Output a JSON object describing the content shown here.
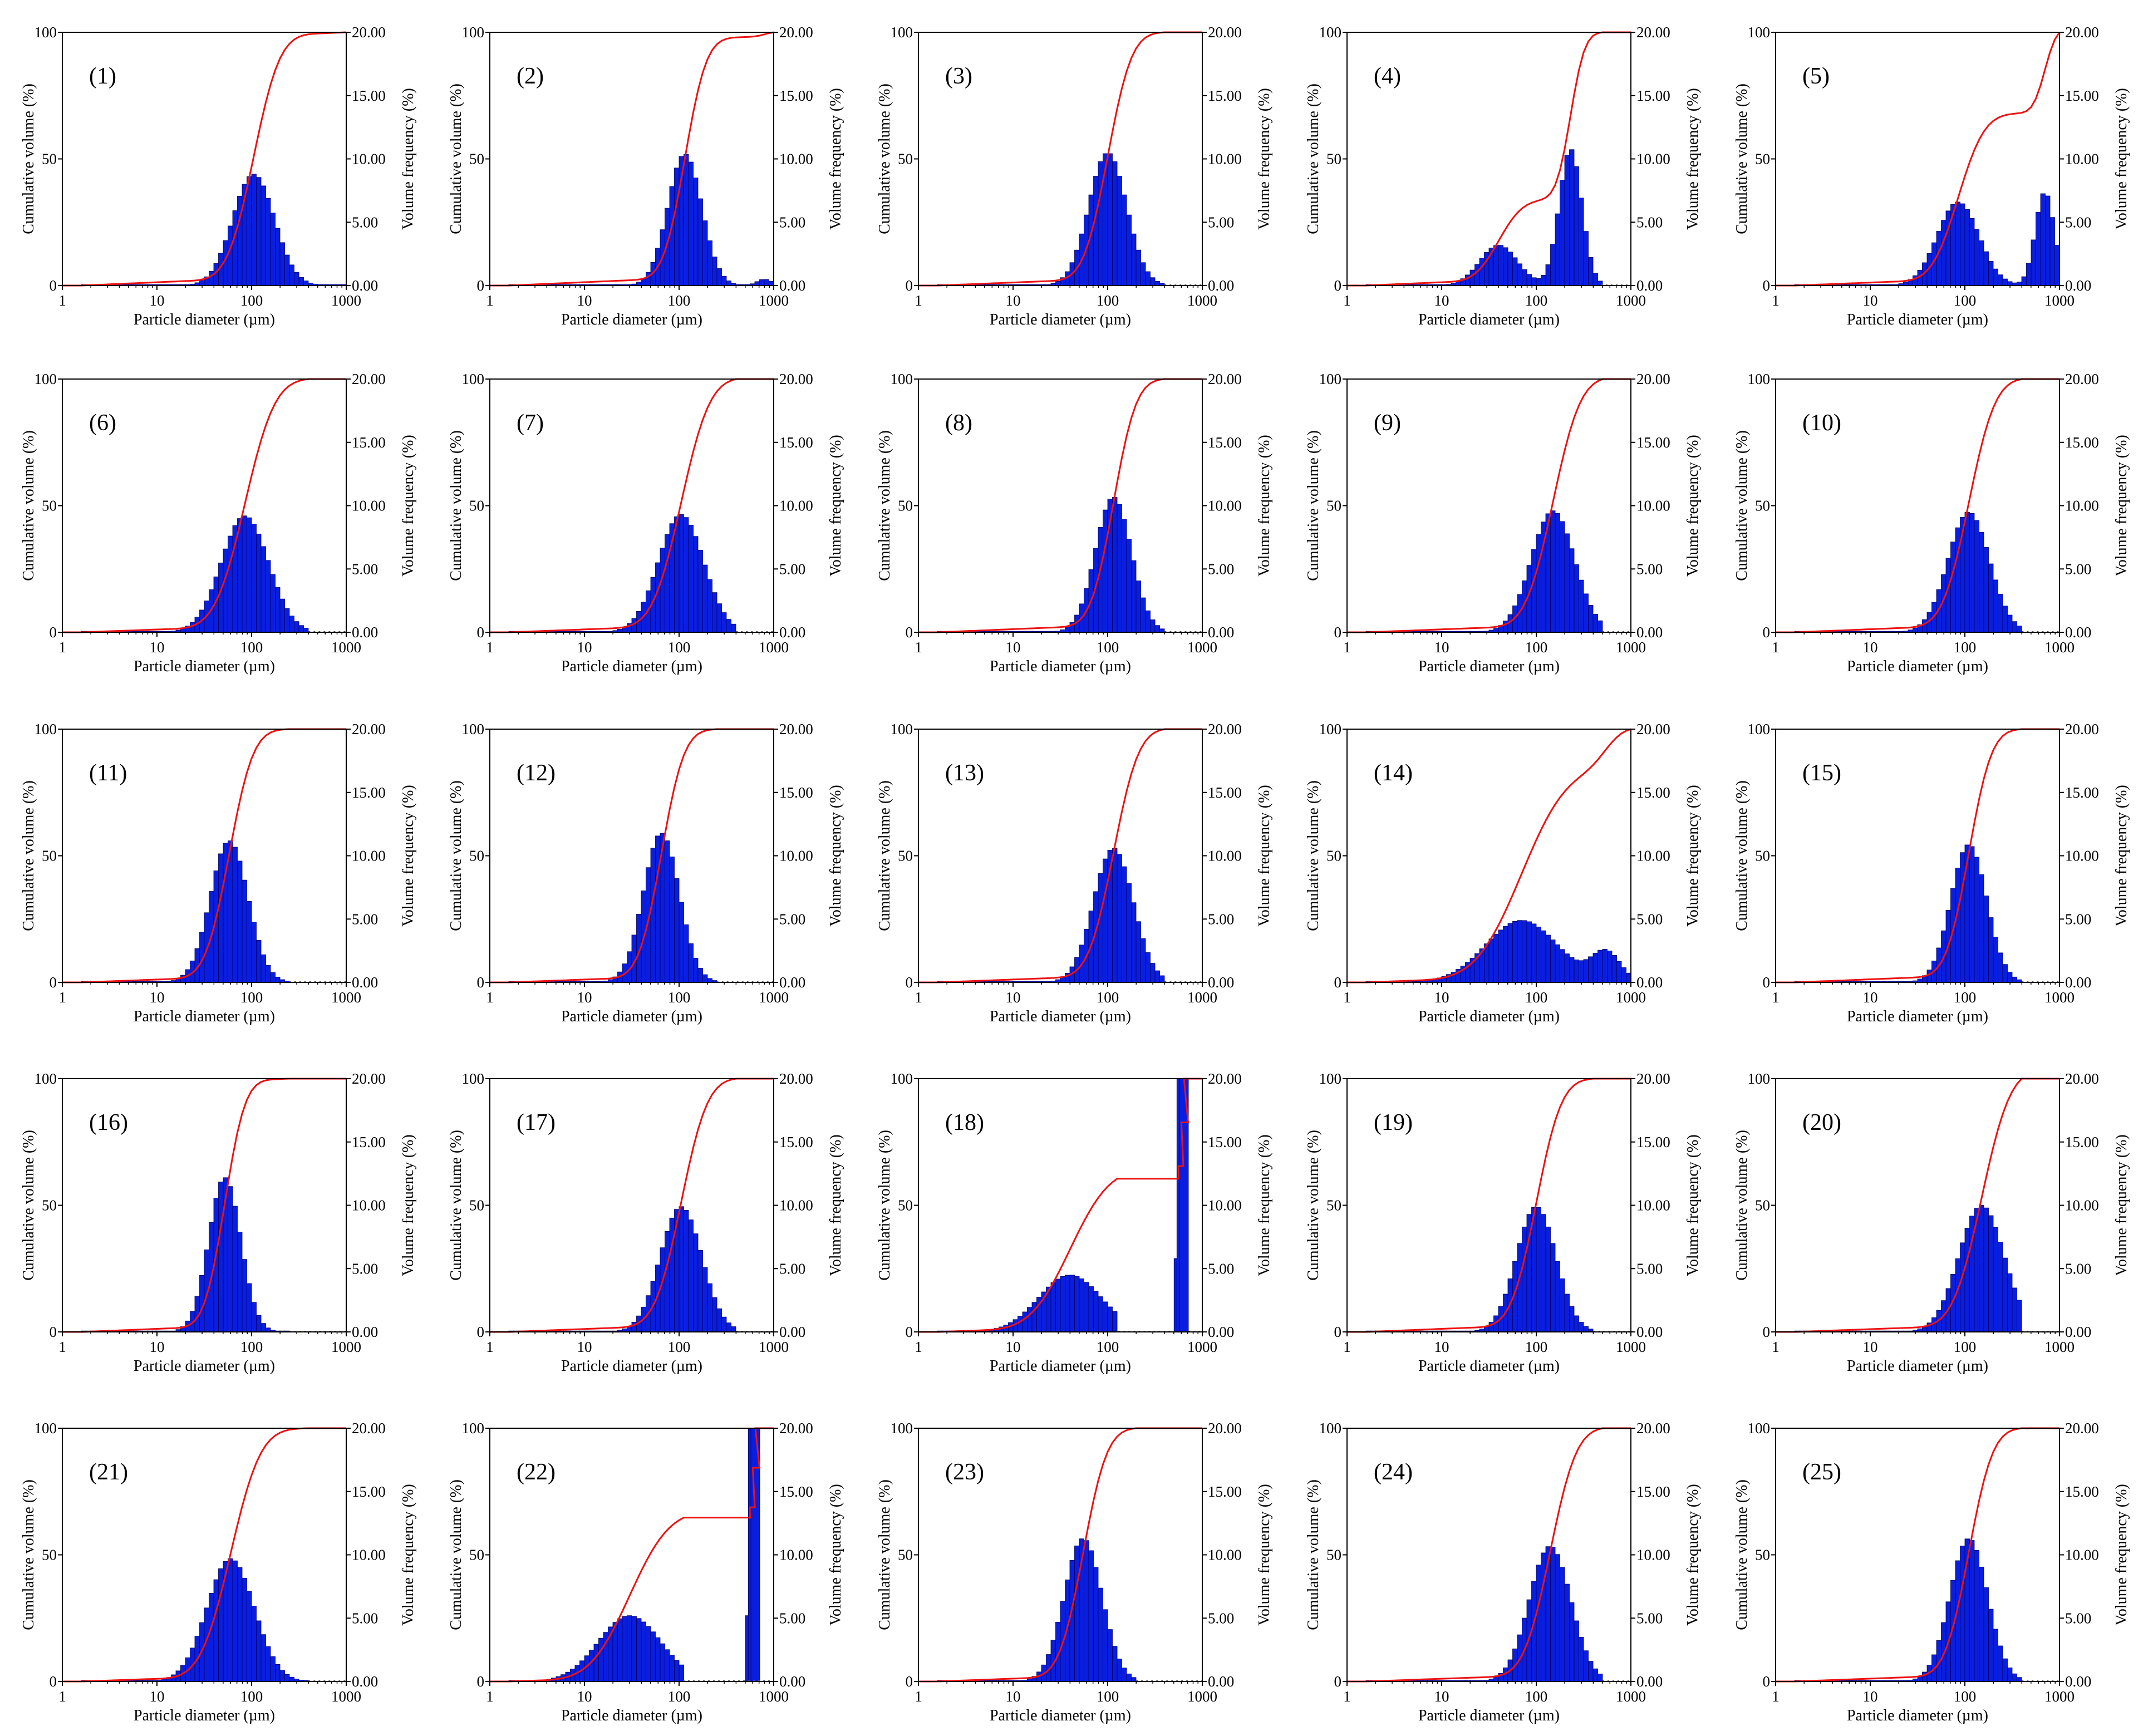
{
  "figure": {
    "rows": 5,
    "cols": 5
  },
  "shared_axes": {
    "x_label": "Particle diameter (µm)",
    "y_left_label": "Cumulative volume (%)",
    "y_right_label": "Volume frequency (%)",
    "x_ticks": [
      "1",
      "10",
      "100",
      "1000"
    ],
    "y_left_ticks": [
      "0",
      "50",
      "100"
    ],
    "y_right_ticks": [
      "0.00",
      "5.00",
      "10.00",
      "15.00",
      "20.00"
    ]
  },
  "colors": {
    "bar_fill": "#0a1ee0",
    "bar_stroke": "#000060",
    "cumulative_line": "#ee1111",
    "frame": "#000000"
  },
  "chart_data": [
    {
      "type": "bar+line",
      "label": "(1)",
      "xscale": "log",
      "xlim": [
        1,
        1000
      ],
      "ylim_left": [
        0,
        100
      ],
      "ylim_right": [
        0,
        20
      ],
      "series": [
        {
          "name": "Volume frequency (%)",
          "kind": "bar",
          "components": [
            {
              "mean": 105,
              "sigma": 0.22,
              "peak": 8.8
            }
          ],
          "x_max": 1000
        },
        {
          "name": "Cumulative volume (%)",
          "kind": "line"
        }
      ]
    },
    {
      "type": "bar+line",
      "label": "(2)",
      "xscale": "log",
      "xlim": [
        1,
        1000
      ],
      "ylim_left": [
        0,
        100
      ],
      "ylim_right": [
        0,
        20
      ],
      "series": [
        {
          "name": "Volume frequency (%)",
          "kind": "bar",
          "components": [
            {
              "mean": 115,
              "sigma": 0.18,
              "peak": 10.4
            },
            {
              "mean": 800,
              "sigma": 0.08,
              "peak": 0.5
            }
          ],
          "x_max": 1000
        },
        {
          "name": "Cumulative volume (%)",
          "kind": "line"
        }
      ]
    },
    {
      "type": "bar+line",
      "label": "(3)",
      "xscale": "log",
      "xlim": [
        1,
        1000
      ],
      "ylim_left": [
        0,
        100
      ],
      "ylim_right": [
        0,
        20
      ],
      "series": [
        {
          "name": "Volume frequency (%)",
          "kind": "bar",
          "components": [
            {
              "mean": 100,
              "sigma": 0.2,
              "peak": 10.5
            }
          ],
          "x_max": 400
        },
        {
          "name": "Cumulative volume (%)",
          "kind": "line"
        }
      ]
    },
    {
      "type": "bar+line",
      "label": "(4)",
      "xscale": "log",
      "xlim": [
        1,
        1000
      ],
      "ylim_left": [
        0,
        100
      ],
      "ylim_right": [
        0,
        20
      ],
      "series": [
        {
          "name": "Volume frequency (%)",
          "kind": "bar",
          "components": [
            {
              "mean": 40,
              "sigma": 0.2,
              "peak": 3.2
            },
            {
              "mean": 230,
              "sigma": 0.12,
              "peak": 10.8
            }
          ],
          "x_max": 480
        },
        {
          "name": "Cumulative volume (%)",
          "kind": "line"
        }
      ]
    },
    {
      "type": "bar+line",
      "label": "(5)",
      "xscale": "log",
      "xlim": [
        1,
        1000
      ],
      "ylim_left": [
        0,
        100
      ],
      "ylim_right": [
        0,
        20
      ],
      "series": [
        {
          "name": "Volume frequency (%)",
          "kind": "bar",
          "components": [
            {
              "mean": 85,
              "sigma": 0.22,
              "peak": 6.6
            },
            {
              "mean": 700,
              "sigma": 0.1,
              "peak": 7.4
            }
          ],
          "x_max": 1000
        },
        {
          "name": "Cumulative volume (%)",
          "kind": "line"
        }
      ]
    },
    {
      "type": "bar+line",
      "label": "(6)",
      "xscale": "log",
      "xlim": [
        1,
        1000
      ],
      "ylim_left": [
        0,
        100
      ],
      "ylim_right": [
        0,
        20
      ],
      "series": [
        {
          "name": "Volume frequency (%)",
          "kind": "bar",
          "components": [
            {
              "mean": 85,
              "sigma": 0.25,
              "peak": 9.2
            }
          ],
          "x_max": 400
        },
        {
          "name": "Cumulative volume (%)",
          "kind": "line"
        }
      ]
    },
    {
      "type": "bar+line",
      "label": "(7)",
      "xscale": "log",
      "xlim": [
        1,
        1000
      ],
      "ylim_left": [
        0,
        100
      ],
      "ylim_right": [
        0,
        20
      ],
      "series": [
        {
          "name": "Volume frequency (%)",
          "kind": "bar",
          "components": [
            {
              "mean": 105,
              "sigma": 0.24,
              "peak": 9.3
            }
          ],
          "x_max": 400
        },
        {
          "name": "Cumulative volume (%)",
          "kind": "line"
        }
      ]
    },
    {
      "type": "bar+line",
      "label": "(8)",
      "xscale": "log",
      "xlim": [
        1,
        1000
      ],
      "ylim_left": [
        0,
        100
      ],
      "ylim_right": [
        0,
        20
      ],
      "series": [
        {
          "name": "Volume frequency (%)",
          "kind": "bar",
          "components": [
            {
              "mean": 115,
              "sigma": 0.19,
              "peak": 10.7
            }
          ],
          "x_max": 400
        },
        {
          "name": "Cumulative volume (%)",
          "kind": "line"
        }
      ]
    },
    {
      "type": "bar+line",
      "label": "(9)",
      "xscale": "log",
      "xlim": [
        1,
        1000
      ],
      "ylim_left": [
        0,
        100
      ],
      "ylim_right": [
        0,
        20
      ],
      "series": [
        {
          "name": "Volume frequency (%)",
          "kind": "bar",
          "components": [
            {
              "mean": 150,
              "sigma": 0.23,
              "peak": 9.6
            }
          ],
          "x_max": 500
        },
        {
          "name": "Cumulative volume (%)",
          "kind": "line"
        }
      ]
    },
    {
      "type": "bar+line",
      "label": "(10)",
      "xscale": "log",
      "xlim": [
        1,
        1000
      ],
      "ylim_left": [
        0,
        100
      ],
      "ylim_right": [
        0,
        20
      ],
      "series": [
        {
          "name": "Volume frequency (%)",
          "kind": "bar",
          "components": [
            {
              "mean": 110,
              "sigma": 0.22,
              "peak": 9.5
            }
          ],
          "x_max": 400
        },
        {
          "name": "Cumulative volume (%)",
          "kind": "line"
        }
      ]
    },
    {
      "type": "bar+line",
      "label": "(11)",
      "xscale": "log",
      "xlim": [
        1,
        1000
      ],
      "ylim_left": [
        0,
        100
      ],
      "ylim_right": [
        0,
        20
      ],
      "series": [
        {
          "name": "Volume frequency (%)",
          "kind": "bar",
          "components": [
            {
              "mean": 58,
              "sigma": 0.2,
              "peak": 11.2
            }
          ],
          "x_max": 250
        },
        {
          "name": "Cumulative volume (%)",
          "kind": "line"
        }
      ]
    },
    {
      "type": "bar+line",
      "label": "(12)",
      "xscale": "log",
      "xlim": [
        1,
        1000
      ],
      "ylim_left": [
        0,
        100
      ],
      "ylim_right": [
        0,
        20
      ],
      "series": [
        {
          "name": "Volume frequency (%)",
          "kind": "bar",
          "components": [
            {
              "mean": 65,
              "sigma": 0.19,
              "peak": 11.8
            }
          ],
          "x_max": 250
        },
        {
          "name": "Cumulative volume (%)",
          "kind": "line"
        }
      ]
    },
    {
      "type": "bar+line",
      "label": "(13)",
      "xscale": "log",
      "xlim": [
        1,
        1000
      ],
      "ylim_left": [
        0,
        100
      ],
      "ylim_right": [
        0,
        20
      ],
      "series": [
        {
          "name": "Volume frequency (%)",
          "kind": "bar",
          "components": [
            {
              "mean": 115,
              "sigma": 0.21,
              "peak": 10.6
            }
          ],
          "x_max": 400
        },
        {
          "name": "Cumulative volume (%)",
          "kind": "line"
        }
      ]
    },
    {
      "type": "bar+line",
      "label": "(14)",
      "xscale": "log",
      "xlim": [
        1,
        1000
      ],
      "ylim_left": [
        0,
        100
      ],
      "ylim_right": [
        0,
        20
      ],
      "series": [
        {
          "name": "Volume frequency (%)",
          "kind": "bar",
          "components": [
            {
              "mean": 70,
              "sigma": 0.38,
              "peak": 4.9
            },
            {
              "mean": 550,
              "sigma": 0.15,
              "peak": 2.3
            }
          ],
          "x_max": 1000
        },
        {
          "name": "Cumulative volume (%)",
          "kind": "line"
        }
      ]
    },
    {
      "type": "bar+line",
      "label": "(15)",
      "xscale": "log",
      "xlim": [
        1,
        1000
      ],
      "ylim_left": [
        0,
        100
      ],
      "ylim_right": [
        0,
        20
      ],
      "series": [
        {
          "name": "Volume frequency (%)",
          "kind": "bar",
          "components": [
            {
              "mean": 110,
              "sigma": 0.19,
              "peak": 10.9
            }
          ],
          "x_max": 400
        },
        {
          "name": "Cumulative volume (%)",
          "kind": "line"
        }
      ]
    },
    {
      "type": "bar+line",
      "label": "(16)",
      "xscale": "log",
      "xlim": [
        1,
        1000
      ],
      "ylim_left": [
        0,
        100
      ],
      "ylim_right": [
        0,
        20
      ],
      "series": [
        {
          "name": "Volume frequency (%)",
          "kind": "bar",
          "components": [
            {
              "mean": 52,
              "sigma": 0.17,
              "peak": 12.2
            }
          ],
          "x_max": 250
        },
        {
          "name": "Cumulative volume (%)",
          "kind": "line"
        }
      ]
    },
    {
      "type": "bar+line",
      "label": "(17)",
      "xscale": "log",
      "xlim": [
        1,
        1000
      ],
      "ylim_left": [
        0,
        100
      ],
      "ylim_right": [
        0,
        20
      ],
      "series": [
        {
          "name": "Volume frequency (%)",
          "kind": "bar",
          "components": [
            {
              "mean": 105,
              "sigma": 0.22,
              "peak": 9.9
            }
          ],
          "x_max": 400
        },
        {
          "name": "Cumulative volume (%)",
          "kind": "line"
        }
      ]
    },
    {
      "type": "bar+line",
      "label": "(18)",
      "xscale": "log",
      "xlim": [
        1,
        1000
      ],
      "ylim_left": [
        0,
        100
      ],
      "ylim_right": [
        0,
        20
      ],
      "series": [
        {
          "name": "Volume frequency (%)",
          "kind": "bar",
          "components": [
            {
              "mean": 40,
              "sigma": 0.33,
              "peak": 4.5
            }
          ],
          "x_max": 130,
          "spike": {
            "x": [
              560,
              600,
              640
            ],
            "values": [
              5.8,
              20,
              20
            ]
          }
        },
        {
          "name": "Cumulative volume (%)",
          "kind": "line"
        }
      ]
    },
    {
      "type": "bar+line",
      "label": "(19)",
      "xscale": "log",
      "xlim": [
        1,
        1000
      ],
      "ylim_left": [
        0,
        100
      ],
      "ylim_right": [
        0,
        20
      ],
      "series": [
        {
          "name": "Volume frequency (%)",
          "kind": "bar",
          "components": [
            {
              "mean": 100,
              "sigma": 0.21,
              "peak": 9.9
            }
          ],
          "x_max": 400
        },
        {
          "name": "Cumulative volume (%)",
          "kind": "line"
        }
      ]
    },
    {
      "type": "bar+line",
      "label": "(20)",
      "xscale": "log",
      "xlim": [
        1,
        1000
      ],
      "ylim_left": [
        0,
        100
      ],
      "ylim_right": [
        0,
        20
      ],
      "series": [
        {
          "name": "Volume frequency (%)",
          "kind": "bar",
          "components": [
            {
              "mean": 150,
              "sigma": 0.24,
              "peak": 10
            }
          ],
          "x_max": 400
        },
        {
          "name": "Cumulative volume (%)",
          "kind": "line"
        }
      ]
    },
    {
      "type": "bar+line",
      "label": "(21)",
      "xscale": "log",
      "xlim": [
        1,
        1000
      ],
      "ylim_left": [
        0,
        100
      ],
      "ylim_right": [
        0,
        20
      ],
      "series": [
        {
          "name": "Volume frequency (%)",
          "kind": "bar",
          "components": [
            {
              "mean": 60,
              "sigma": 0.25,
              "peak": 9.7
            }
          ],
          "x_max": 400
        },
        {
          "name": "Cumulative volume (%)",
          "kind": "line"
        }
      ]
    },
    {
      "type": "bar+line",
      "label": "(22)",
      "xscale": "log",
      "xlim": [
        1,
        1000
      ],
      "ylim_left": [
        0,
        100
      ],
      "ylim_right": [
        0,
        20
      ],
      "series": [
        {
          "name": "Volume frequency (%)",
          "kind": "bar",
          "components": [
            {
              "mean": 30,
              "sigma": 0.33,
              "peak": 5.2
            }
          ],
          "x_max": 110,
          "spike": {
            "x": [
              560,
              600,
              640
            ],
            "values": [
              5.2,
              20,
              20
            ]
          }
        },
        {
          "name": "Cumulative volume (%)",
          "kind": "line"
        }
      ]
    },
    {
      "type": "bar+line",
      "label": "(23)",
      "xscale": "log",
      "xlim": [
        1,
        1000
      ],
      "ylim_left": [
        0,
        100
      ],
      "ylim_right": [
        0,
        20
      ],
      "series": [
        {
          "name": "Volume frequency (%)",
          "kind": "bar",
          "components": [
            {
              "mean": 55,
              "sigma": 0.2,
              "peak": 11.3
            }
          ],
          "x_max": 200
        },
        {
          "name": "Cumulative volume (%)",
          "kind": "line"
        }
      ]
    },
    {
      "type": "bar+line",
      "label": "(24)",
      "xscale": "log",
      "xlim": [
        1,
        1000
      ],
      "ylim_left": [
        0,
        100
      ],
      "ylim_right": [
        0,
        20
      ],
      "series": [
        {
          "name": "Volume frequency (%)",
          "kind": "bar",
          "components": [
            {
              "mean": 140,
              "sigma": 0.22,
              "peak": 10.7
            }
          ],
          "x_max": 500
        },
        {
          "name": "Cumulative volume (%)",
          "kind": "line"
        }
      ]
    },
    {
      "type": "bar+line",
      "label": "(25)",
      "xscale": "log",
      "xlim": [
        1,
        1000
      ],
      "ylim_left": [
        0,
        100
      ],
      "ylim_right": [
        0,
        20
      ],
      "series": [
        {
          "name": "Volume frequency (%)",
          "kind": "bar",
          "components": [
            {
              "mean": 110,
              "sigma": 0.2,
              "peak": 11.3
            }
          ],
          "x_max": 400
        },
        {
          "name": "Cumulative volume (%)",
          "kind": "line"
        }
      ]
    }
  ]
}
